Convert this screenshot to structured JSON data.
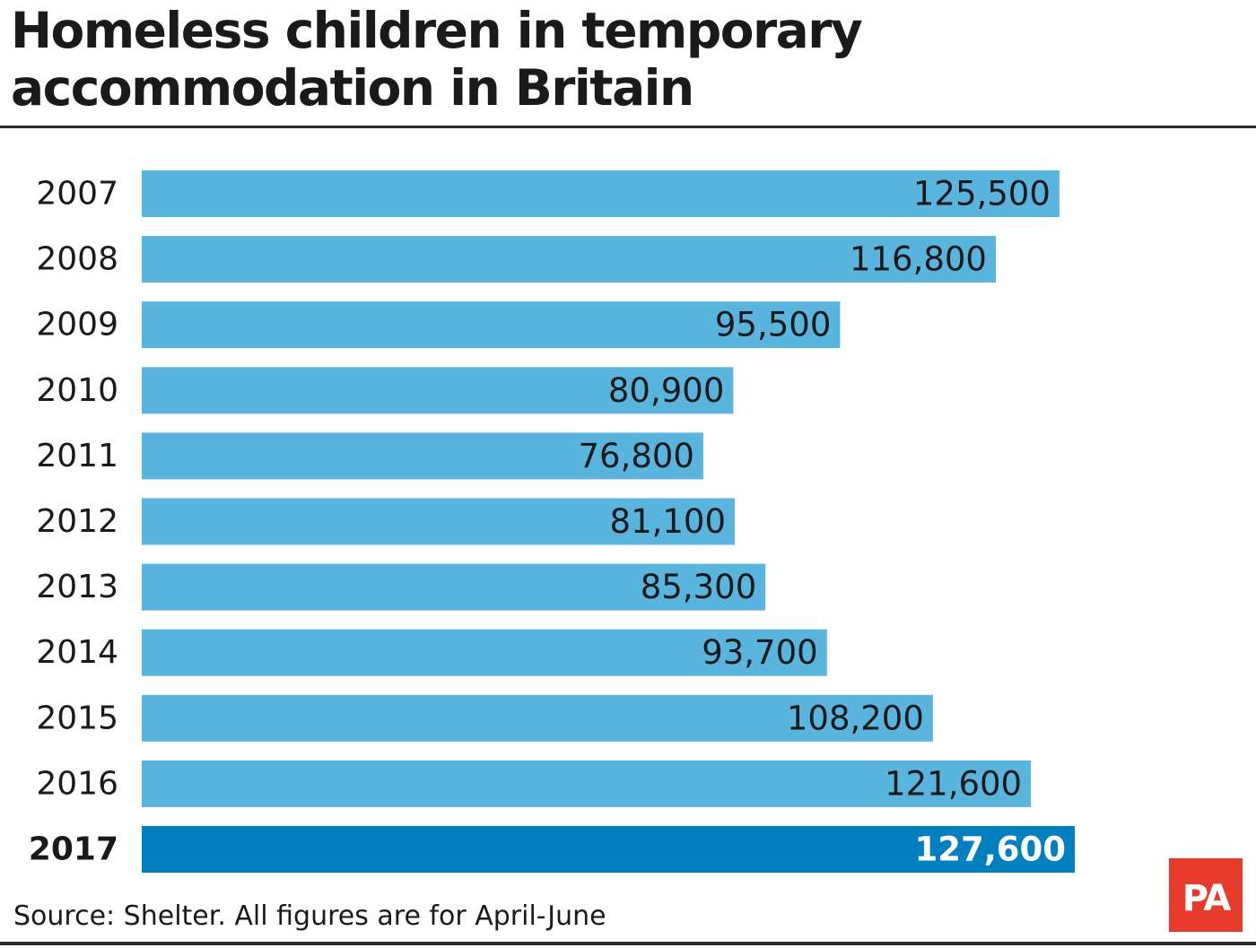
{
  "colors": {
    "bar": "#5ab5de",
    "highlight_bar": "#0080be",
    "text": "#1a1a1a",
    "highlight_value_text": "#ffffff",
    "logo_bg": "#e8392d"
  },
  "footer": {
    "source": "Source: Shelter. All figures are for April-June",
    "logo_text": "PA"
  },
  "chart_data": {
    "type": "bar",
    "orientation": "horizontal",
    "title": "Homeless children in temporary\naccommodation in Britain",
    "categories": [
      "2007",
      "2008",
      "2009",
      "2010",
      "2011",
      "2012",
      "2013",
      "2014",
      "2015",
      "2016",
      "2017"
    ],
    "values": [
      125500,
      116800,
      95500,
      80900,
      76800,
      81100,
      85300,
      93700,
      108200,
      121600,
      127600
    ],
    "value_labels": [
      "125,500",
      "116,800",
      "95,500",
      "80,900",
      "76,800",
      "81,100",
      "85,300",
      "93,700",
      "108,200",
      "121,600",
      "127,600"
    ],
    "highlight_category": "2017",
    "xlim": [
      0,
      127600
    ],
    "grid": false,
    "legend": "none"
  }
}
